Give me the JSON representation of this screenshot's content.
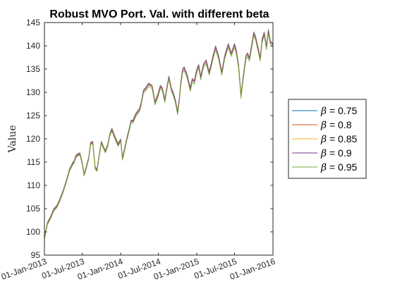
{
  "chart_data": {
    "type": "line",
    "title": "Robust MVO Port. Val. with different beta",
    "xlabel": "",
    "ylabel": "Value",
    "ylim": [
      95,
      145
    ],
    "yticks": [
      95,
      100,
      105,
      110,
      115,
      120,
      125,
      130,
      135,
      140,
      145
    ],
    "xlim": [
      "2013-01-01",
      "2016-01-01"
    ],
    "xticks": [
      "01-Jan-2013",
      "01-Jul-2013",
      "01-Jan-2014",
      "01-Jul-2014",
      "01-Jan-2015",
      "01-Jul-2015",
      "01-Jan-2016"
    ],
    "legend_position": "outside-right",
    "grid": false,
    "x": [
      "2013-01-01",
      "2013-01-15",
      "2013-02-01",
      "2013-02-15",
      "2013-03-01",
      "2013-03-15",
      "2013-04-01",
      "2013-04-15",
      "2013-05-01",
      "2013-05-15",
      "2013-05-22",
      "2013-06-01",
      "2013-06-10",
      "2013-06-20",
      "2013-07-01",
      "2013-07-10",
      "2013-07-20",
      "2013-08-01",
      "2013-08-10",
      "2013-08-20",
      "2013-09-01",
      "2013-09-10",
      "2013-09-20",
      "2013-10-01",
      "2013-10-10",
      "2013-10-20",
      "2013-11-01",
      "2013-11-10",
      "2013-11-20",
      "2013-12-01",
      "2013-12-10",
      "2013-12-20",
      "2014-01-01",
      "2014-01-10",
      "2014-01-20",
      "2014-02-01",
      "2014-02-10",
      "2014-02-20",
      "2014-03-01",
      "2014-03-15",
      "2014-04-01",
      "2014-04-10",
      "2014-04-20",
      "2014-05-01",
      "2014-05-15",
      "2014-06-01",
      "2014-06-15",
      "2014-07-01",
      "2014-07-10",
      "2014-07-20",
      "2014-08-01",
      "2014-08-10",
      "2014-08-20",
      "2014-09-01",
      "2014-09-10",
      "2014-09-20",
      "2014-10-01",
      "2014-10-10",
      "2014-10-16",
      "2014-10-25",
      "2014-11-01",
      "2014-11-15",
      "2014-12-01",
      "2014-12-10",
      "2014-12-20",
      "2015-01-01",
      "2015-01-10",
      "2015-01-20",
      "2015-02-01",
      "2015-02-15",
      "2015-03-01",
      "2015-03-10",
      "2015-03-20",
      "2015-04-01",
      "2015-04-15",
      "2015-05-01",
      "2015-05-15",
      "2015-06-01",
      "2015-06-15",
      "2015-07-01",
      "2015-07-10",
      "2015-07-20",
      "2015-08-01",
      "2015-08-10",
      "2015-08-20",
      "2015-08-25",
      "2015-09-01",
      "2015-09-10",
      "2015-09-20",
      "2015-10-01",
      "2015-10-10",
      "2015-10-20",
      "2015-11-01",
      "2015-11-10",
      "2015-11-20",
      "2015-12-01",
      "2015-12-10",
      "2015-12-20",
      "2016-01-01"
    ],
    "series": [
      {
        "name": "β = 0.75",
        "color": "#0072BD",
        "values": [
          98.8,
          102.0,
          103.5,
          105.0,
          105.7,
          107.0,
          109.0,
          111.0,
          113.5,
          114.8,
          115.2,
          116.5,
          116.8,
          117.0,
          115.0,
          112.5,
          114.0,
          116.0,
          119.2,
          119.5,
          114.0,
          113.5,
          116.5,
          119.5,
          118.5,
          117.5,
          119.0,
          121.0,
          122.3,
          121.0,
          120.0,
          119.0,
          120.0,
          116.0,
          118.0,
          120.5,
          122.0,
          124.0,
          124.0,
          125.5,
          126.5,
          128.0,
          130.5,
          131.0,
          132.0,
          131.5,
          128.0,
          130.0,
          131.5,
          131.0,
          128.5,
          131.0,
          133.5,
          131.0,
          130.0,
          128.5,
          126.0,
          129.0,
          132.0,
          135.0,
          135.5,
          134.0,
          131.0,
          133.0,
          132.5,
          135.0,
          136.0,
          133.5,
          136.0,
          137.0,
          134.5,
          136.0,
          138.0,
          140.0,
          138.0,
          134.5,
          138.0,
          140.5,
          138.5,
          140.5,
          139.0,
          136.0,
          129.5,
          133.0,
          136.5,
          138.0,
          138.5,
          137.5,
          140.0,
          143.0,
          142.0,
          140.0,
          137.5,
          141.5,
          143.0,
          140.0,
          143.5,
          141.0,
          140.5
        ]
      },
      {
        "name": "β = 0.8",
        "color": "#D95319",
        "values": [
          98.7,
          101.9,
          103.4,
          104.9,
          105.6,
          106.9,
          108.9,
          110.9,
          113.4,
          114.7,
          115.1,
          116.4,
          116.7,
          116.9,
          114.9,
          112.4,
          113.9,
          115.9,
          119.1,
          119.4,
          113.9,
          113.4,
          116.4,
          119.4,
          118.4,
          117.4,
          118.9,
          120.9,
          122.2,
          120.9,
          119.9,
          118.9,
          119.9,
          115.9,
          117.9,
          120.4,
          121.9,
          123.9,
          123.9,
          125.4,
          126.4,
          127.9,
          130.4,
          130.9,
          131.9,
          131.4,
          127.9,
          129.9,
          131.4,
          130.9,
          128.4,
          130.9,
          133.4,
          130.9,
          129.9,
          128.4,
          125.9,
          128.9,
          131.9,
          134.9,
          135.4,
          133.9,
          130.9,
          132.9,
          132.4,
          134.9,
          135.9,
          133.4,
          135.9,
          136.9,
          134.4,
          135.9,
          137.9,
          139.9,
          137.9,
          134.4,
          137.9,
          140.4,
          138.4,
          140.4,
          138.9,
          135.9,
          129.4,
          132.9,
          136.4,
          137.9,
          138.4,
          137.4,
          139.9,
          142.9,
          141.9,
          139.9,
          137.4,
          141.4,
          142.9,
          139.9,
          143.4,
          140.9,
          140.4
        ]
      },
      {
        "name": "β = 0.85",
        "color": "#EDB120",
        "values": [
          98.6,
          101.8,
          103.3,
          104.8,
          105.5,
          106.8,
          108.8,
          110.8,
          113.3,
          114.6,
          115.0,
          116.3,
          116.6,
          116.8,
          114.8,
          112.3,
          113.8,
          115.8,
          119.0,
          119.3,
          113.8,
          113.3,
          116.3,
          119.3,
          118.3,
          117.3,
          118.8,
          120.8,
          122.1,
          120.8,
          119.8,
          118.8,
          119.8,
          115.8,
          117.8,
          120.3,
          121.8,
          123.8,
          123.8,
          125.3,
          126.3,
          127.8,
          130.3,
          130.8,
          131.8,
          131.3,
          127.8,
          129.8,
          131.3,
          130.8,
          128.3,
          130.8,
          133.3,
          130.8,
          129.8,
          128.3,
          125.8,
          128.8,
          131.8,
          134.8,
          135.3,
          133.8,
          130.8,
          132.8,
          132.3,
          134.8,
          135.8,
          133.3,
          135.8,
          136.8,
          134.3,
          135.8,
          137.8,
          139.8,
          137.8,
          134.3,
          137.8,
          140.3,
          138.3,
          140.3,
          138.8,
          135.8,
          129.3,
          132.8,
          136.3,
          137.8,
          138.3,
          137.3,
          139.8,
          142.8,
          141.8,
          139.8,
          137.3,
          141.3,
          142.8,
          139.8,
          143.3,
          140.8,
          140.3
        ]
      },
      {
        "name": "β = 0.9",
        "color": "#7E2F8E",
        "values": [
          98.5,
          101.7,
          103.2,
          104.7,
          105.4,
          106.7,
          108.7,
          110.7,
          113.2,
          114.5,
          114.9,
          116.2,
          116.5,
          116.7,
          114.7,
          112.2,
          113.7,
          115.7,
          118.9,
          119.2,
          113.7,
          113.2,
          116.2,
          119.2,
          118.2,
          117.2,
          118.7,
          120.7,
          122.0,
          120.7,
          119.7,
          118.7,
          119.7,
          115.7,
          117.7,
          120.2,
          121.7,
          123.7,
          123.7,
          125.2,
          126.2,
          127.7,
          130.2,
          130.7,
          131.7,
          131.2,
          127.7,
          129.7,
          131.2,
          130.7,
          128.2,
          130.7,
          133.2,
          130.7,
          129.7,
          128.2,
          125.7,
          128.7,
          131.7,
          134.7,
          135.2,
          133.7,
          130.7,
          132.7,
          132.2,
          134.7,
          135.7,
          133.2,
          135.7,
          136.7,
          134.2,
          135.7,
          137.7,
          139.7,
          137.7,
          134.2,
          137.7,
          140.2,
          138.2,
          140.2,
          138.7,
          135.7,
          129.2,
          132.7,
          136.2,
          137.7,
          138.2,
          137.2,
          139.7,
          142.7,
          141.7,
          139.7,
          137.2,
          141.2,
          142.7,
          139.7,
          143.2,
          140.7,
          140.2
        ]
      },
      {
        "name": "β = 0.95",
        "color": "#77AC30",
        "values": [
          98.3,
          101.5,
          103.0,
          104.5,
          105.2,
          106.5,
          108.5,
          110.5,
          113.0,
          114.3,
          114.7,
          116.0,
          116.3,
          116.5,
          114.5,
          112.0,
          113.5,
          115.5,
          118.7,
          119.0,
          113.5,
          113.0,
          116.0,
          119.0,
          118.0,
          117.0,
          118.5,
          120.5,
          121.7,
          120.4,
          119.4,
          118.4,
          119.4,
          115.4,
          117.4,
          119.9,
          121.4,
          123.4,
          123.4,
          124.8,
          125.8,
          127.3,
          129.8,
          130.3,
          131.3,
          130.8,
          127.3,
          129.3,
          130.8,
          130.3,
          127.8,
          130.3,
          132.8,
          130.3,
          129.3,
          127.8,
          125.2,
          128.2,
          131.2,
          134.2,
          134.7,
          133.2,
          130.2,
          132.2,
          131.7,
          134.2,
          135.2,
          132.7,
          135.2,
          136.2,
          133.7,
          135.2,
          137.2,
          139.2,
          137.2,
          133.7,
          137.2,
          139.7,
          137.7,
          139.7,
          138.2,
          135.2,
          128.7,
          132.2,
          135.7,
          137.2,
          137.7,
          136.7,
          139.2,
          142.2,
          141.2,
          139.2,
          136.7,
          140.7,
          142.2,
          139.2,
          142.7,
          140.2,
          139.7
        ]
      }
    ]
  }
}
